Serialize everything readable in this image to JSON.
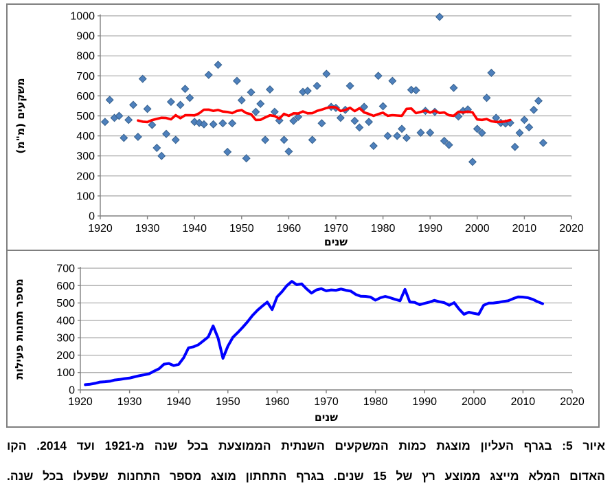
{
  "caption": {
    "line1": "איור 5: בגרף העליון מוצגת כמות המשקעים השנתית הממוצעת בכל שנה מ-1921 ועד 2014. הקו",
    "line2": "האדום המלא מייצג ממוצע רץ של 15 שנים. בגרף התחתון מוצג מספר התחנות שפעלו בכל שנה."
  },
  "colors": {
    "marker_fill": "#4e80bc",
    "marker_stroke": "#36618e",
    "running_mean_line": "#ff0000",
    "stations_line": "#0000ff",
    "gridline": "#a6a6a6",
    "axis": "#808080",
    "chart_border": "#7f7f7f",
    "text": "#000000",
    "background": "#ffffff"
  },
  "chart_data": [
    {
      "type": "scatter",
      "title": "",
      "xlabel": "שנים",
      "ylabel": "משקעים (מ\"מ)",
      "xlim": [
        1920,
        2020
      ],
      "ylim": [
        0,
        1000
      ],
      "x_ticks": [
        1920,
        1930,
        1940,
        1950,
        1960,
        1970,
        1980,
        1990,
        2000,
        2010,
        2020
      ],
      "y_ticks": [
        0,
        100,
        200,
        300,
        400,
        500,
        600,
        700,
        800,
        900,
        1000
      ],
      "grid": true,
      "legend": "none",
      "year_start": 1921,
      "year_end": 2014,
      "series": [
        {
          "name": "annual-precipitation-mm",
          "style": "scatter-diamond",
          "color": "#4e80bc",
          "values": [
            470,
            580,
            490,
            500,
            390,
            480,
            555,
            395,
            685,
            535,
            455,
            340,
            300,
            410,
            570,
            380,
            555,
            635,
            590,
            470,
            465,
            458,
            705,
            458,
            755,
            463,
            320,
            463,
            675,
            578,
            288,
            618,
            520,
            560,
            380,
            632,
            520,
            477,
            380,
            322,
            475,
            495,
            620,
            625,
            380,
            650,
            463,
            710,
            545,
            540,
            490,
            530,
            650,
            475,
            442,
            545,
            470,
            350,
            700,
            548,
            400,
            675,
            400,
            435,
            390,
            630,
            628,
            416,
            525,
            416,
            520,
            995,
            375,
            355,
            640,
            497,
            525,
            532,
            270,
            435,
            415,
            590,
            715,
            490,
            465,
            462,
            465,
            345,
            415,
            480,
            443,
            530,
            575,
            365
          ]
        },
        {
          "name": "15-year-running-mean",
          "style": "line",
          "color": "#ff0000",
          "derived_from": "annual-precipitation-mm",
          "window": 15,
          "center_start": 1928,
          "center_end": 2007
        }
      ]
    },
    {
      "type": "line",
      "title": "",
      "xlabel": "שנים",
      "ylabel": "מספר תחנות פעילות",
      "xlim": [
        1920,
        2020
      ],
      "ylim": [
        0,
        700
      ],
      "x_ticks": [
        1920,
        1930,
        1940,
        1950,
        1960,
        1970,
        1980,
        1990,
        2000,
        2010,
        2020
      ],
      "y_ticks": [
        0,
        100,
        200,
        300,
        400,
        500,
        600,
        700
      ],
      "grid": true,
      "legend": "none",
      "year_start": 1921,
      "year_end": 2014,
      "series": [
        {
          "name": "active-stations-count",
          "style": "line",
          "color": "#0000ff",
          "values": [
            30,
            33,
            38,
            45,
            47,
            50,
            57,
            60,
            65,
            68,
            75,
            82,
            87,
            93,
            108,
            122,
            148,
            152,
            140,
            147,
            185,
            242,
            248,
            260,
            282,
            305,
            368,
            298,
            182,
            252,
            302,
            330,
            360,
            392,
            428,
            458,
            482,
            505,
            462,
            535,
            565,
            600,
            624,
            605,
            610,
            581,
            557,
            575,
            582,
            570,
            575,
            573,
            580,
            573,
            568,
            549,
            539,
            538,
            534,
            516,
            530,
            538,
            530,
            521,
            513,
            578,
            505,
            503,
            490,
            498,
            505,
            515,
            507,
            502,
            487,
            502,
            465,
            435,
            447,
            440,
            435,
            487,
            499,
            500,
            503,
            509,
            513,
            525,
            535,
            534,
            530,
            521,
            507,
            496
          ]
        }
      ]
    }
  ]
}
